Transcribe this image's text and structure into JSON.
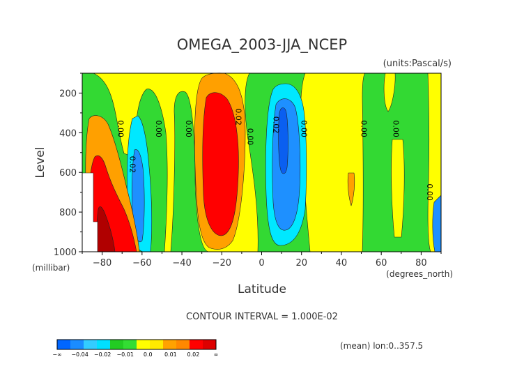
{
  "chart_data": {
    "type": "heatmap",
    "title": "OMEGA_2003-JJA_NCEP",
    "units": "(units:Pascal/s)",
    "xlabel": "Latitude",
    "xunits": "(degrees_north)",
    "ylabel": "Level",
    "yunits": "(millibar)",
    "xlim": [
      -90,
      90
    ],
    "ylim": [
      1000,
      100
    ],
    "x_ticks": [
      -80,
      -60,
      -40,
      -20,
      0,
      20,
      40,
      60,
      80
    ],
    "y_ticks": [
      200,
      400,
      600,
      800,
      1000
    ],
    "contour_interval_text": "CONTOUR INTERVAL = 1.000E-02",
    "footer_text": "(mean) lon:0..357.5",
    "contour_labels": [
      {
        "text": "0.00",
        "lat": -72,
        "level": 380
      },
      {
        "text": "0.02",
        "lat": -66,
        "level": 560
      },
      {
        "text": "0.00",
        "lat": -53,
        "level": 380
      },
      {
        "text": "0.00",
        "lat": -38,
        "level": 380
      },
      {
        "text": "0.02",
        "lat": -13,
        "level": 320
      },
      {
        "text": "0.00",
        "lat": -7,
        "level": 420
      },
      {
        "text": "0.02",
        "lat": 6,
        "level": 360
      },
      {
        "text": "0.00",
        "lat": 20,
        "level": 380
      },
      {
        "text": "0.00",
        "lat": 50,
        "level": 380
      },
      {
        "text": "0.00",
        "lat": 66,
        "level": 380
      },
      {
        "text": "0.00",
        "lat": 83,
        "level": 700
      }
    ],
    "colorbar": {
      "labels": [
        "-∞",
        "-0.04",
        "-0.02",
        "-0.01",
        "0.0",
        "0.01",
        "0.02",
        "∞"
      ],
      "colors": [
        "#0066ff",
        "#1a8cff",
        "#33ccff",
        "#00e0ff",
        "#22cc22",
        "#33dd33",
        "#ffff00",
        "#ffea00",
        "#ffa200",
        "#ff8800",
        "#ff0000",
        "#dd0000"
      ]
    },
    "fill_colors": {
      "strong_down": "#0a5ff0",
      "down": "#1e90ff",
      "weak_down": "#00e8ff",
      "near_zero": "#33d933",
      "weak_up": "#ffff00",
      "up": "#ffa000",
      "strong_up": "#ff0000",
      "extreme_up": "#b00000"
    }
  }
}
